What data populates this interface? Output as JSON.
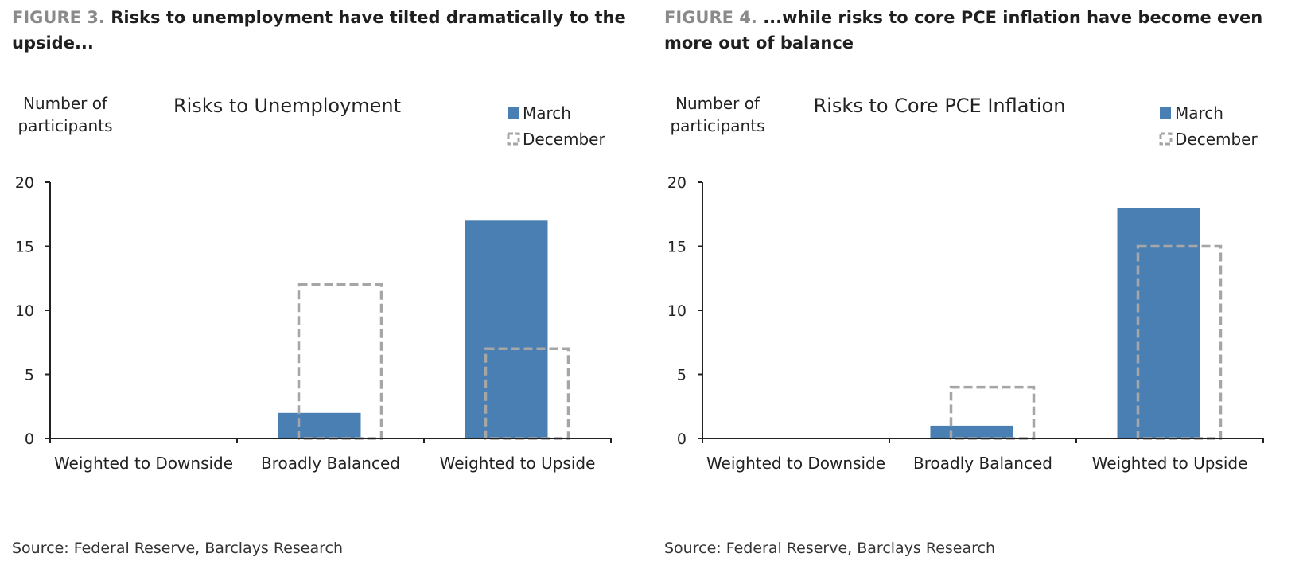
{
  "figures": [
    {
      "label": "FIGURE 3.",
      "title": "Risks to unemployment have tilted dramatically to the upside...",
      "source": "Source: Federal Reserve, Barclays Research"
    },
    {
      "label": "FIGURE 4.",
      "title": "...while risks to core PCE inflation have become even more out of balance",
      "source": "Source: Federal Reserve, Barclays Research"
    }
  ],
  "colors": {
    "march": "#4a7fb3",
    "december": "#a6a6a6",
    "axis": "#222222"
  },
  "chart_data": [
    {
      "type": "bar",
      "title": "Risks to Unemployment",
      "ylabel": [
        "Number of",
        "participants"
      ],
      "categories": [
        "Weighted to Downside",
        "Broadly Balanced",
        "Weighted to Upside"
      ],
      "series": [
        {
          "name": "March",
          "values": [
            0,
            2,
            17
          ],
          "style": "solid"
        },
        {
          "name": "December",
          "values": [
            0,
            12,
            7
          ],
          "style": "dashed-outline"
        }
      ],
      "ylim": [
        0,
        20
      ],
      "yticks": [
        0,
        5,
        10,
        15,
        20
      ],
      "legend": "top-right",
      "grid": false
    },
    {
      "type": "bar",
      "title": "Risks to Core PCE Inflation",
      "ylabel": [
        "Number of",
        "participants"
      ],
      "categories": [
        "Weighted to Downside",
        "Broadly Balanced",
        "Weighted to Upside"
      ],
      "series": [
        {
          "name": "March",
          "values": [
            0,
            1,
            18
          ],
          "style": "solid"
        },
        {
          "name": "December",
          "values": [
            0,
            4,
            15
          ],
          "style": "dashed-outline"
        }
      ],
      "ylim": [
        0,
        20
      ],
      "yticks": [
        0,
        5,
        10,
        15,
        20
      ],
      "legend": "top-right",
      "grid": false
    }
  ]
}
